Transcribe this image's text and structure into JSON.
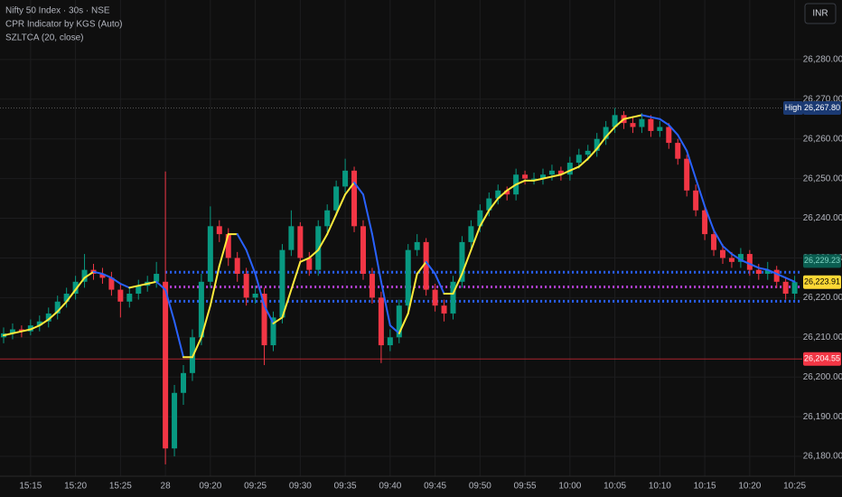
{
  "chart_data": {
    "type": "candlestick",
    "title": "Nifty 50 Index · 30s · NSE",
    "currency": "INR",
    "categories": [
      null,
      null,
      null,
      "15:15",
      null,
      null,
      null,
      null,
      "15:20",
      null,
      null,
      null,
      null,
      "15:25",
      null,
      null,
      null,
      null,
      "28",
      null,
      null,
      null,
      null,
      "09:20",
      null,
      null,
      null,
      null,
      "09:25",
      null,
      null,
      null,
      null,
      "09:30",
      null,
      null,
      null,
      null,
      "09:35",
      null,
      null,
      null,
      null,
      "09:40",
      null,
      null,
      null,
      null,
      "09:45",
      null,
      null,
      null,
      null,
      "09:50",
      null,
      null,
      null,
      null,
      "09:55",
      null,
      null,
      null,
      null,
      "10:00",
      null,
      null,
      null,
      null,
      "10:05",
      null,
      null,
      null,
      null,
      "10:10",
      null,
      null,
      null,
      null,
      "10:15",
      null,
      null,
      null,
      null,
      "10:20",
      null,
      null,
      null,
      null,
      "10:25"
    ],
    "open": [
      26210,
      26211,
      26212,
      26211.5,
      26213,
      26214,
      26216,
      26219,
      26221,
      26224,
      26227,
      26226,
      26225,
      26222,
      26219,
      26221,
      26223,
      26224,
      26224,
      26182,
      26196,
      26201,
      26210,
      26224,
      26238,
      26236,
      26230,
      26226,
      26220,
      26221,
      26208,
      26215,
      26232,
      26238,
      26230,
      26227,
      26238,
      26242,
      26248,
      26252,
      26238,
      26226,
      26220,
      26208,
      26210,
      26218,
      26232,
      26234,
      26222,
      26218,
      26216,
      26224,
      26234,
      26238,
      26242,
      26245,
      26247,
      26246,
      26251,
      26250,
      26250,
      26251,
      26252,
      26251,
      26254,
      26256,
      26257,
      26260,
      26263,
      26266,
      26264,
      26263,
      26265,
      26262,
      26263,
      26259,
      26255,
      26247,
      26242,
      26236,
      26232,
      26230,
      26229,
      26231,
      26227,
      26226,
      26227,
      26224,
      26221
    ],
    "high": [
      26212.5,
      26213.5,
      26213,
      26214.5,
      26215.5,
      26217.5,
      26220.5,
      26222.5,
      26225.5,
      26231,
      26228.5,
      26227.5,
      26226.5,
      26223.5,
      26222.5,
      26224.5,
      26225.5,
      26229,
      26251.8,
      26198,
      26203,
      26212,
      26226,
      26243,
      26239.5,
      26237.5,
      26231.5,
      26227.5,
      26223,
      26222.5,
      26216.5,
      26233.5,
      26242,
      26239,
      26231.5,
      26239.5,
      26243.5,
      26249.5,
      26255,
      26253,
      26239.5,
      26227.5,
      26221.5,
      26212,
      26219.5,
      26233.5,
      26236,
      26235,
      26223.5,
      26219.5,
      26225.5,
      26235.5,
      26239.5,
      26243.5,
      26246.5,
      26248.5,
      26248,
      26252.5,
      26252,
      26251.5,
      26252.5,
      26253.5,
      26253,
      26255.5,
      26257.5,
      26258.5,
      26261.5,
      26264.5,
      26267.8,
      26267,
      26265.5,
      26266.5,
      26266,
      26264.5,
      26264,
      26260,
      26256,
      26248.5,
      26243.5,
      26237.5,
      26233.5,
      26231.5,
      26232.5,
      26232,
      26228.5,
      26229,
      26228,
      26225,
      26225.5
    ],
    "low": [
      26208.5,
      26209.5,
      26210,
      26210.5,
      26211.5,
      26212.5,
      26214.5,
      26217.5,
      26219.5,
      26222.5,
      26224.5,
      26223.5,
      26220.5,
      26215,
      26217.5,
      26219.5,
      26221.5,
      26222.5,
      26178,
      26180,
      26193,
      26199,
      26208,
      26222.5,
      26234,
      26228,
      26224,
      26218,
      26218.5,
      26203,
      26206.5,
      26213.5,
      26230.5,
      26228.5,
      26225.5,
      26225.5,
      26236.5,
      26240.5,
      26246.5,
      26236.5,
      26224.5,
      26218.5,
      26203.5,
      26206.5,
      26208.5,
      26216.5,
      26230.5,
      26220.5,
      26216.5,
      26214,
      26214.5,
      26222.5,
      26232.5,
      26236.5,
      26240.5,
      26243.5,
      26244.5,
      26244.5,
      26248.5,
      26248.5,
      26248.5,
      26249.5,
      26249.5,
      26249.5,
      26252.5,
      26254.5,
      26255.5,
      26258.5,
      26261.5,
      26262.5,
      26261.5,
      26261.5,
      26260.5,
      26260.5,
      26257.5,
      26253.5,
      26245.5,
      26240.5,
      26234.5,
      26230.5,
      26228.5,
      26227.5,
      26227.5,
      26225.5,
      26224.5,
      26224.5,
      26222.5,
      26219.5,
      26219.5
    ],
    "close": [
      26211,
      26212,
      26211.5,
      26213,
      26214,
      26216,
      26219,
      26221,
      26224,
      26227,
      26226,
      26225,
      26222,
      26219,
      26221,
      26223,
      26224,
      26226,
      26182,
      26196,
      26201,
      26210,
      26224,
      26238,
      26236,
      26230,
      26226,
      26220,
      26221,
      26208,
      26215,
      26232,
      26238,
      26230,
      26227,
      26238,
      26242,
      26248,
      26252,
      26238,
      26226,
      26220,
      26208,
      26210,
      26218,
      26232,
      26234,
      26222,
      26218,
      26216,
      26224,
      26234,
      26238,
      26242,
      26245,
      26247,
      26246,
      26251,
      26250,
      26250,
      26251,
      26252,
      26251,
      26254,
      26256,
      26257,
      26260,
      26263,
      26266,
      26264,
      26263,
      26265,
      26262,
      26263,
      26259,
      26255,
      26247,
      26242,
      26236,
      26232,
      26230,
      26229,
      26231,
      26227,
      26226,
      26227,
      26224,
      26221,
      26223.91
    ],
    "up_color": "#089981",
    "down_color": "#f23645",
    "ma": {
      "name": "SZLTCA (20, close)",
      "up_color": "#ffeb3b",
      "down_color": "#2962ff",
      "values": [
        26210.5,
        26211,
        26211.5,
        26212,
        26213,
        26214.5,
        26216.5,
        26219,
        26222,
        26225,
        26226.5,
        26226,
        26225,
        26223.5,
        26222.5,
        26223,
        26223.5,
        26224,
        26222,
        26214,
        26205,
        26205,
        26210,
        26218,
        26228,
        26236,
        26236,
        26232,
        26226,
        26218,
        26213.5,
        26215,
        26222,
        26229,
        26230,
        26232,
        26236,
        26241,
        26246,
        26249,
        26246,
        26236,
        26224,
        26213,
        26211,
        26216,
        26226,
        26229,
        26226,
        26221,
        26221,
        26226,
        26232,
        26238,
        26242,
        26245,
        26247,
        26248.5,
        26249.5,
        26249.5,
        26250,
        26250.5,
        26251,
        26252,
        26253,
        26255,
        26257.5,
        26260.5,
        26263,
        26265,
        26265.5,
        26266,
        26265.5,
        26265,
        26263.5,
        26261,
        26257,
        26250,
        26243,
        26237,
        26233,
        26231,
        26229.5,
        26228.5,
        26227.5,
        26227,
        26226,
        26225,
        26224
      ]
    },
    "cpr": {
      "name": "CPR Indicator by KGS (Auto)",
      "start": 18,
      "levels": [
        {
          "value": 26226.4,
          "color": "#2962ff"
        },
        {
          "value": 26222.7,
          "color": "#b040d0"
        },
        {
          "value": 26219.1,
          "color": "#2962ff"
        }
      ]
    },
    "price_tags": [
      {
        "value": 26267.8,
        "label": "26,267.80",
        "name": "High",
        "color": "#1b3a73",
        "text_color": "#ffffff",
        "line_color": "#555555"
      },
      {
        "value": 26229.23,
        "label": "26,229.23",
        "color": "#0b5e51",
        "text_color": "#7fd3c2"
      },
      {
        "value": 26223.91,
        "label": "26,223.91",
        "color": "#fdd835",
        "text_color": "#000000"
      },
      {
        "value": 26204.55,
        "label": "26,204.55",
        "color": "#f23645",
        "text_color": "#ffffff",
        "line_color": "#a8242f"
      }
    ],
    "ylim": [
      26175,
      26295
    ],
    "yticks": [
      {
        "value": 26180,
        "label": "26,180.00"
      },
      {
        "value": 26190,
        "label": "26,190.00"
      },
      {
        "value": 26200,
        "label": "26,200.00"
      },
      {
        "value": 26210,
        "label": "26,210.00"
      },
      {
        "value": 26220,
        "label": "26,220.00"
      },
      {
        "value": 26230,
        "label": "26,230.00"
      },
      {
        "value": 26240,
        "label": "26,240.00"
      },
      {
        "value": 26250,
        "label": "26,250.00"
      },
      {
        "value": 26260,
        "label": "26,260.00"
      },
      {
        "value": 26270,
        "label": "26,270.00"
      },
      {
        "value": 26280,
        "label": "26,280.00"
      }
    ],
    "grid": true
  }
}
